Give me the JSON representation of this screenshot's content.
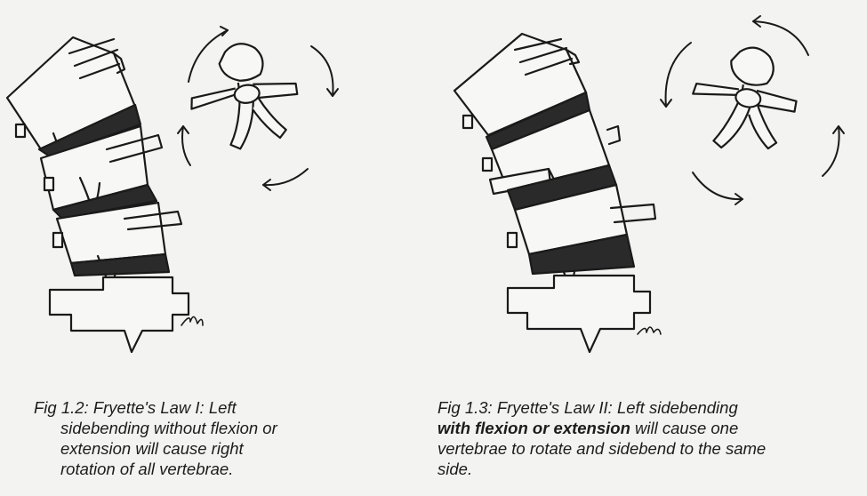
{
  "figures": [
    {
      "id": "fig-1-2",
      "caption_lines": [
        {
          "text": "Fig 1.2: Fryette's Law I:  Left",
          "bold": false
        },
        {
          "text": "sidebending without flexion or",
          "bold": false
        },
        {
          "text": "extension will cause right",
          "bold": false
        },
        {
          "text": "rotation of all vertebrae.",
          "bold": false
        }
      ]
    },
    {
      "id": "fig-1-3",
      "caption_lines": [
        {
          "text": "Fig 1.3: Fryette's Law II:  Left sidebending",
          "bold": false
        },
        {
          "text": "with flexion or extension",
          "bold": true,
          "suffix": " will cause one"
        },
        {
          "text": "vertebrae to rotate and sidebend to the same",
          "bold": false
        },
        {
          "text": "side.",
          "bold": false
        }
      ]
    }
  ],
  "colors": {
    "ink": "#1a1a1a",
    "paper": "#f3f3f1",
    "disc": "#2a2a2a"
  },
  "icons": [
    "rotation-arrow-icon",
    "vertebra-top-view-icon",
    "spine-column-icon"
  ]
}
